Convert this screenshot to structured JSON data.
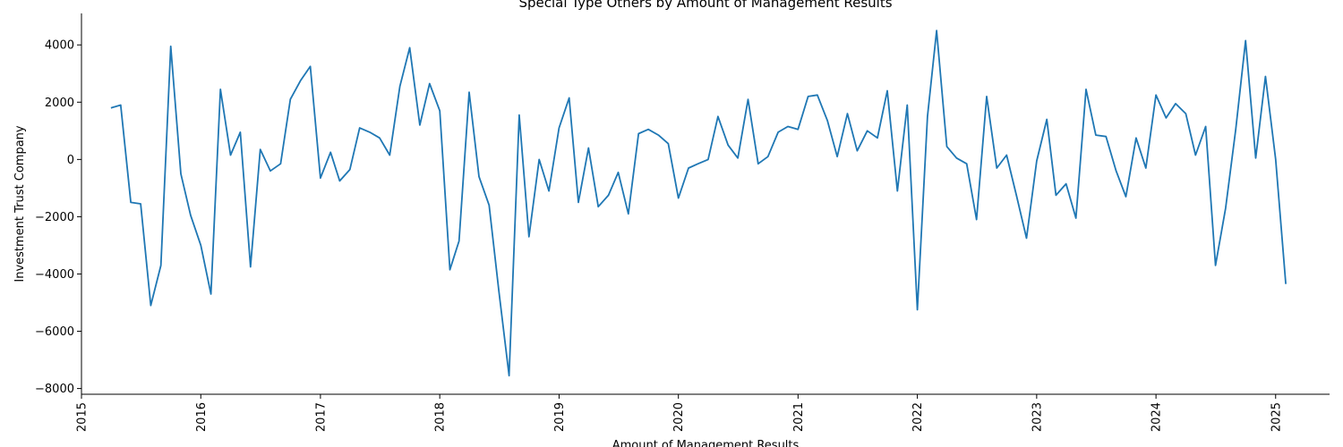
{
  "chart_data": {
    "type": "line",
    "title": "Special Type Others by Amount of Management Results",
    "xlabel": "Amount of Management Results",
    "ylabel": "Investment Trust Company",
    "xlim": [
      "2015-01-01",
      "2025-06-15"
    ],
    "ylim": [
      -8200,
      5100
    ],
    "x_ticks": [
      "2015",
      "2016",
      "2017",
      "2018",
      "2019",
      "2020",
      "2021",
      "2022",
      "2023",
      "2024",
      "2025"
    ],
    "y_ticks": [
      -8000,
      -6000,
      -4000,
      -2000,
      0,
      2000,
      4000
    ],
    "grid": false,
    "color": "#1f77b4",
    "series": [
      {
        "x": [
          "2015-04",
          "2015-05",
          "2015-06",
          "2015-07",
          "2015-08",
          "2015-09",
          "2015-10",
          "2015-11",
          "2015-12",
          "2016-01",
          "2016-02",
          "2016-03",
          "2016-04",
          "2016-05",
          "2016-06",
          "2016-07",
          "2016-08",
          "2016-09",
          "2016-10",
          "2016-11",
          "2016-12",
          "2017-01",
          "2017-02",
          "2017-03",
          "2017-04",
          "2017-05",
          "2017-06",
          "2017-07",
          "2017-08",
          "2017-09",
          "2017-10",
          "2017-11",
          "2017-12",
          "2018-01",
          "2018-02",
          "2018-03",
          "2018-04",
          "2018-05",
          "2018-06",
          "2018-07",
          "2018-08",
          "2018-09",
          "2018-10",
          "2018-11",
          "2018-12",
          "2019-01",
          "2019-02",
          "2019-03",
          "2019-04",
          "2019-05",
          "2019-06",
          "2019-07",
          "2019-08",
          "2019-09",
          "2019-10",
          "2019-11",
          "2019-12",
          "2020-01",
          "2020-02",
          "2020-03",
          "2020-04",
          "2020-05",
          "2020-06",
          "2020-07",
          "2020-08",
          "2020-09",
          "2020-10",
          "2020-11",
          "2020-12",
          "2021-01",
          "2021-02",
          "2021-03",
          "2021-04",
          "2021-05",
          "2021-06",
          "2021-07",
          "2021-08",
          "2021-09",
          "2021-10",
          "2021-11",
          "2021-12",
          "2022-01",
          "2022-02",
          "2022-03",
          "2022-04",
          "2022-05",
          "2022-06",
          "2022-07",
          "2022-08",
          "2022-09",
          "2022-10",
          "2022-11",
          "2022-12",
          "2023-01",
          "2023-02",
          "2023-03",
          "2023-04",
          "2023-05",
          "2023-06",
          "2023-07",
          "2023-08",
          "2023-09",
          "2023-10",
          "2023-11",
          "2023-12",
          "2024-01",
          "2024-02",
          "2024-03",
          "2024-04",
          "2024-05",
          "2024-06",
          "2024-07",
          "2024-08",
          "2024-09",
          "2024-10",
          "2024-11",
          "2024-12",
          "2025-01",
          "2025-02"
        ],
        "y": [
          1800,
          1900,
          -1500,
          -1550,
          -5100,
          -3700,
          3950,
          -500,
          -1950,
          -3000,
          -4700,
          2450,
          150,
          950,
          -3750,
          350,
          -400,
          -150,
          2100,
          2750,
          3250,
          -650,
          250,
          -750,
          -350,
          1100,
          950,
          750,
          150,
          2550,
          3900,
          1200,
          2650,
          1700,
          -3850,
          -2850,
          2350,
          -600,
          -1600,
          -4600,
          -7550,
          1550,
          -2700,
          0,
          -1100,
          1100,
          2150,
          -1500,
          400,
          -1650,
          -1250,
          -450,
          -1900,
          900,
          1050,
          850,
          550,
          -1350,
          -300,
          -150,
          0,
          1500,
          500,
          50,
          2100,
          -150,
          100,
          950,
          1150,
          1050,
          2200,
          2250,
          1350,
          100,
          1600,
          300,
          1000,
          750,
          2400,
          -1100,
          1900,
          -5250,
          1500,
          4500,
          450,
          50,
          -150,
          -2100,
          2200,
          -300,
          150,
          -1300,
          -2750,
          -50,
          1400,
          -1250,
          -850,
          -2050,
          2450,
          850,
          800,
          -400,
          -1300,
          750,
          -300,
          2250,
          1450,
          1950,
          1600,
          150,
          1150,
          -3700,
          -1700,
          1050,
          4150,
          50,
          2900,
          0,
          -4350
        ]
      }
    ]
  }
}
